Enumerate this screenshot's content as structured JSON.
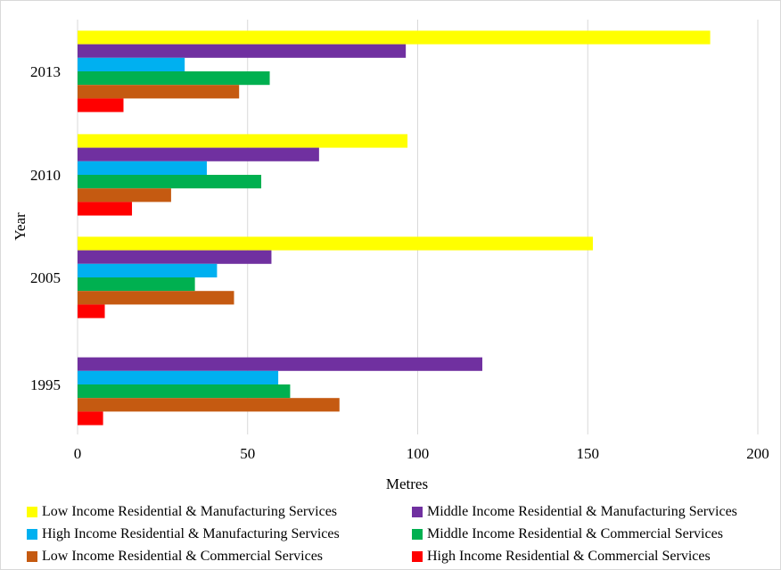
{
  "chart_data": {
    "type": "bar",
    "orientation": "horizontal",
    "title": "",
    "xlabel": "Metres",
    "ylabel": "Year",
    "xlim": [
      0,
      200
    ],
    "xticks": [
      "0",
      "50",
      "100",
      "150",
      "200"
    ],
    "categories": [
      "2013",
      "2010",
      "2005",
      "1995"
    ],
    "grid": "vertical",
    "legend_position": "bottom",
    "series": [
      {
        "name": "Low Income Residential & Manufacturing Services",
        "color": "#FFFF00",
        "values": [
          186,
          97,
          151.5,
          null
        ]
      },
      {
        "name": "Middle Income Residential & Manufacturing Services",
        "color": "#7030A0",
        "values": [
          96.5,
          71,
          57,
          119
        ]
      },
      {
        "name": "High Income Residential & Manufacturing Services",
        "color": "#00B0F0",
        "values": [
          31.5,
          38,
          41,
          59
        ]
      },
      {
        "name": "Middle Income Residential & Commercial Services",
        "color": "#00B050",
        "values": [
          56.5,
          54,
          34.5,
          62.5
        ]
      },
      {
        "name": "Low Income Residential & Commercial Services",
        "color": "#C55A11",
        "values": [
          47.5,
          27.5,
          46,
          77
        ]
      },
      {
        "name": "High Income Residential & Commercial Services",
        "color": "#FF0000",
        "values": [
          13.5,
          16,
          8,
          7.5
        ]
      }
    ]
  }
}
